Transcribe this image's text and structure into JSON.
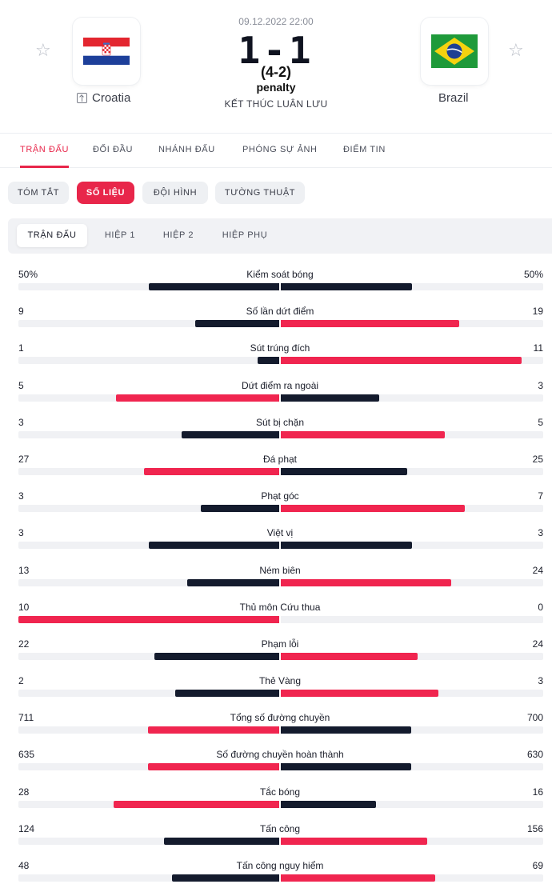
{
  "match": {
    "date": "09.12.2022 22:00",
    "score": "1-1",
    "penalty_score": "(4-2)",
    "penalty_label": "penalty",
    "status": "KẾT THÚC LUÂN LƯU"
  },
  "home_team": {
    "name": "Croatia",
    "flag": "croatia-flag"
  },
  "away_team": {
    "name": "Brazil",
    "flag": "brazil-flag"
  },
  "main_tabs": [
    "TRẬN ĐẤU",
    "ĐỐI ĐẦU",
    "NHÁNH ĐẤU",
    "PHÓNG SỰ ẢNH",
    "ĐIỂM TIN"
  ],
  "main_tab_active": "TRẬN ĐẤU",
  "sub_tabs": [
    "TÓM TẮT",
    "SỐ LIỆU",
    "ĐỘI HÌNH",
    "TƯỜNG THUẬT"
  ],
  "sub_tab_active": "SỐ LIỆU",
  "period_tabs": [
    "TRẬN ĐẤU",
    "HIỆP 1",
    "HIỆP 2",
    "HIỆP PHỤ"
  ],
  "period_tab_active": "TRẬN ĐẤU",
  "colors": {
    "accent": "#e8264a",
    "bar_red": "#f0254f",
    "bar_dark": "#141b2d",
    "track": "#f0f1f4"
  },
  "stats": [
    {
      "label": "Kiểm soát bóng",
      "home": "50%",
      "away": "50%",
      "home_value": 50,
      "away_value": 50,
      "home_color": "dark",
      "away_color": "dark"
    },
    {
      "label": "Số lần dứt điểm",
      "home": "9",
      "away": "19",
      "home_value": 9,
      "away_value": 19,
      "home_color": "dark",
      "away_color": "red"
    },
    {
      "label": "Sút trúng đích",
      "home": "1",
      "away": "11",
      "home_value": 1,
      "away_value": 11,
      "home_color": "dark",
      "away_color": "red"
    },
    {
      "label": "Dứt điểm ra ngoài",
      "home": "5",
      "away": "3",
      "home_value": 5,
      "away_value": 3,
      "home_color": "red",
      "away_color": "dark"
    },
    {
      "label": "Sút bị chặn",
      "home": "3",
      "away": "5",
      "home_value": 3,
      "away_value": 5,
      "home_color": "dark",
      "away_color": "red"
    },
    {
      "label": "Đá phạt",
      "home": "27",
      "away": "25",
      "home_value": 27,
      "away_value": 25,
      "home_color": "red",
      "away_color": "dark"
    },
    {
      "label": "Phạt góc",
      "home": "3",
      "away": "7",
      "home_value": 3,
      "away_value": 7,
      "home_color": "dark",
      "away_color": "red"
    },
    {
      "label": "Việt vị",
      "home": "3",
      "away": "3",
      "home_value": 3,
      "away_value": 3,
      "home_color": "dark",
      "away_color": "dark"
    },
    {
      "label": "Ném biên",
      "home": "13",
      "away": "24",
      "home_value": 13,
      "away_value": 24,
      "home_color": "dark",
      "away_color": "red"
    },
    {
      "label": "Thủ môn Cứu thua",
      "home": "10",
      "away": "0",
      "home_value": 10,
      "away_value": 0,
      "home_color": "red",
      "away_color": "dark"
    },
    {
      "label": "Phạm lỗi",
      "home": "22",
      "away": "24",
      "home_value": 22,
      "away_value": 24,
      "home_color": "dark",
      "away_color": "red"
    },
    {
      "label": "Thẻ Vàng",
      "home": "2",
      "away": "3",
      "home_value": 2,
      "away_value": 3,
      "home_color": "dark",
      "away_color": "red"
    },
    {
      "label": "Tổng số đường chuyền",
      "home": "711",
      "away": "700",
      "home_value": 711,
      "away_value": 700,
      "home_color": "red",
      "away_color": "dark"
    },
    {
      "label": "Số đường chuyền hoàn thành",
      "home": "635",
      "away": "630",
      "home_value": 635,
      "away_value": 630,
      "home_color": "red",
      "away_color": "dark"
    },
    {
      "label": "Tắc bóng",
      "home": "28",
      "away": "16",
      "home_value": 28,
      "away_value": 16,
      "home_color": "red",
      "away_color": "dark"
    },
    {
      "label": "Tấn công",
      "home": "124",
      "away": "156",
      "home_value": 124,
      "away_value": 156,
      "home_color": "dark",
      "away_color": "red"
    },
    {
      "label": "Tấn công nguy hiểm",
      "home": "48",
      "away": "69",
      "home_value": 48,
      "away_value": 69,
      "home_color": "dark",
      "away_color": "red"
    }
  ]
}
